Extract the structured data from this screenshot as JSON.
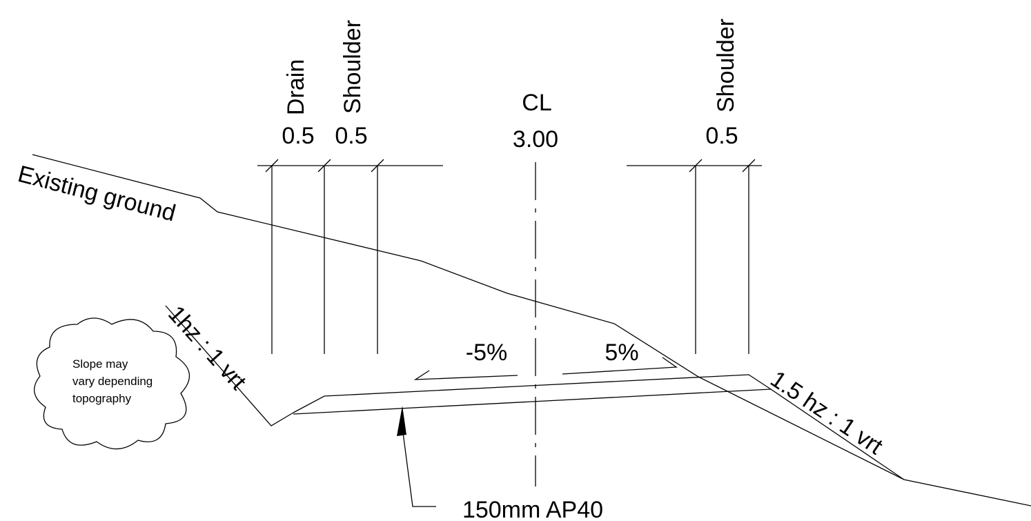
{
  "labels": {
    "drain": "Drain",
    "shoulder_left": "Shoulder",
    "centerline": "CL",
    "shoulder_right": "Shoulder"
  },
  "dimensions": {
    "drain_width": "0.5",
    "shoulder_left_width": "0.5",
    "lane_width": "3.00",
    "shoulder_right_width": "0.5"
  },
  "annotations": {
    "existing_ground": "Existing ground",
    "left_slope": "1hz : 1 vrt",
    "right_slope": "1.5 hz : 1 vrt",
    "left_crossfall": "-5%",
    "right_crossfall": "5%",
    "pavement": "150mm AP40"
  },
  "note": {
    "line1": "Slope may",
    "line2": "vary depending",
    "line3": "topography"
  }
}
